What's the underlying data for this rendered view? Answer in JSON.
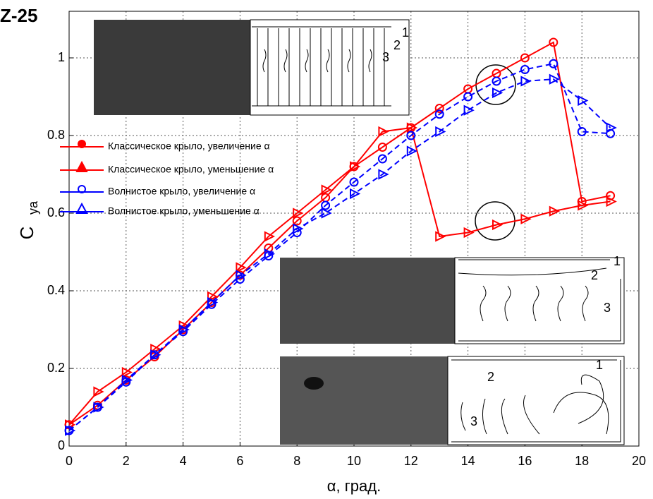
{
  "chart_data": {
    "type": "line",
    "title": "Z-25",
    "x_label": "α, град.",
    "y_label": "C",
    "y_label_sub": "ya",
    "x": [
      0,
      1,
      2,
      3,
      4,
      5,
      6,
      7,
      8,
      9,
      10,
      11,
      12,
      13,
      14,
      15,
      16,
      17,
      18,
      19
    ],
    "xlim": [
      0,
      20
    ],
    "xticks": [
      0,
      2,
      4,
      6,
      8,
      10,
      12,
      14,
      16,
      18,
      20
    ],
    "ylim": [
      0,
      1.12
    ],
    "yticks": [
      0,
      0.2,
      0.4,
      0.6,
      0.8,
      1
    ],
    "grid": true,
    "legend": "left",
    "series": [
      {
        "name": "Классическое крыло, увеличение α",
        "color": "#ff0000",
        "marker": "circle",
        "dashed": false,
        "values": [
          0.055,
          0.105,
          0.17,
          0.23,
          0.3,
          0.37,
          0.44,
          0.51,
          0.58,
          0.64,
          0.72,
          0.77,
          0.82,
          0.87,
          0.92,
          0.96,
          1.0,
          1.04,
          0.63,
          0.645
        ]
      },
      {
        "name": "Классическое крыло, уменьшение α",
        "color": "#ff0000",
        "marker": "triangle",
        "dashed": false,
        "values": [
          0.055,
          0.14,
          0.19,
          0.25,
          0.31,
          0.385,
          0.46,
          0.54,
          0.6,
          0.66,
          0.72,
          0.81,
          0.82,
          0.54,
          0.55,
          0.57,
          0.585,
          0.605,
          0.62,
          0.63
        ]
      },
      {
        "name": "Волнистое крыло, увеличение α",
        "color": "#0000ff",
        "marker": "circle",
        "dashed": true,
        "values": [
          0.04,
          0.1,
          0.165,
          0.235,
          0.295,
          0.365,
          0.43,
          0.49,
          0.55,
          0.62,
          0.68,
          0.74,
          0.8,
          0.855,
          0.9,
          0.94,
          0.97,
          0.985,
          0.81,
          0.805
        ]
      },
      {
        "name": "Волнистое крыло, уменьшение α",
        "color": "#0000ff",
        "marker": "triangle",
        "dashed": true,
        "values": [
          0.04,
          0.1,
          0.17,
          0.235,
          0.3,
          0.37,
          0.44,
          0.495,
          0.56,
          0.6,
          0.65,
          0.7,
          0.76,
          0.81,
          0.865,
          0.91,
          0.94,
          0.945,
          0.89,
          0.82
        ]
      }
    ],
    "insets": [
      {
        "labels": [
          "1",
          "2",
          "3"
        ]
      },
      {
        "labels": [
          "1",
          "2",
          "3"
        ]
      },
      {
        "labels": [
          "1",
          "2",
          "3"
        ]
      }
    ]
  }
}
